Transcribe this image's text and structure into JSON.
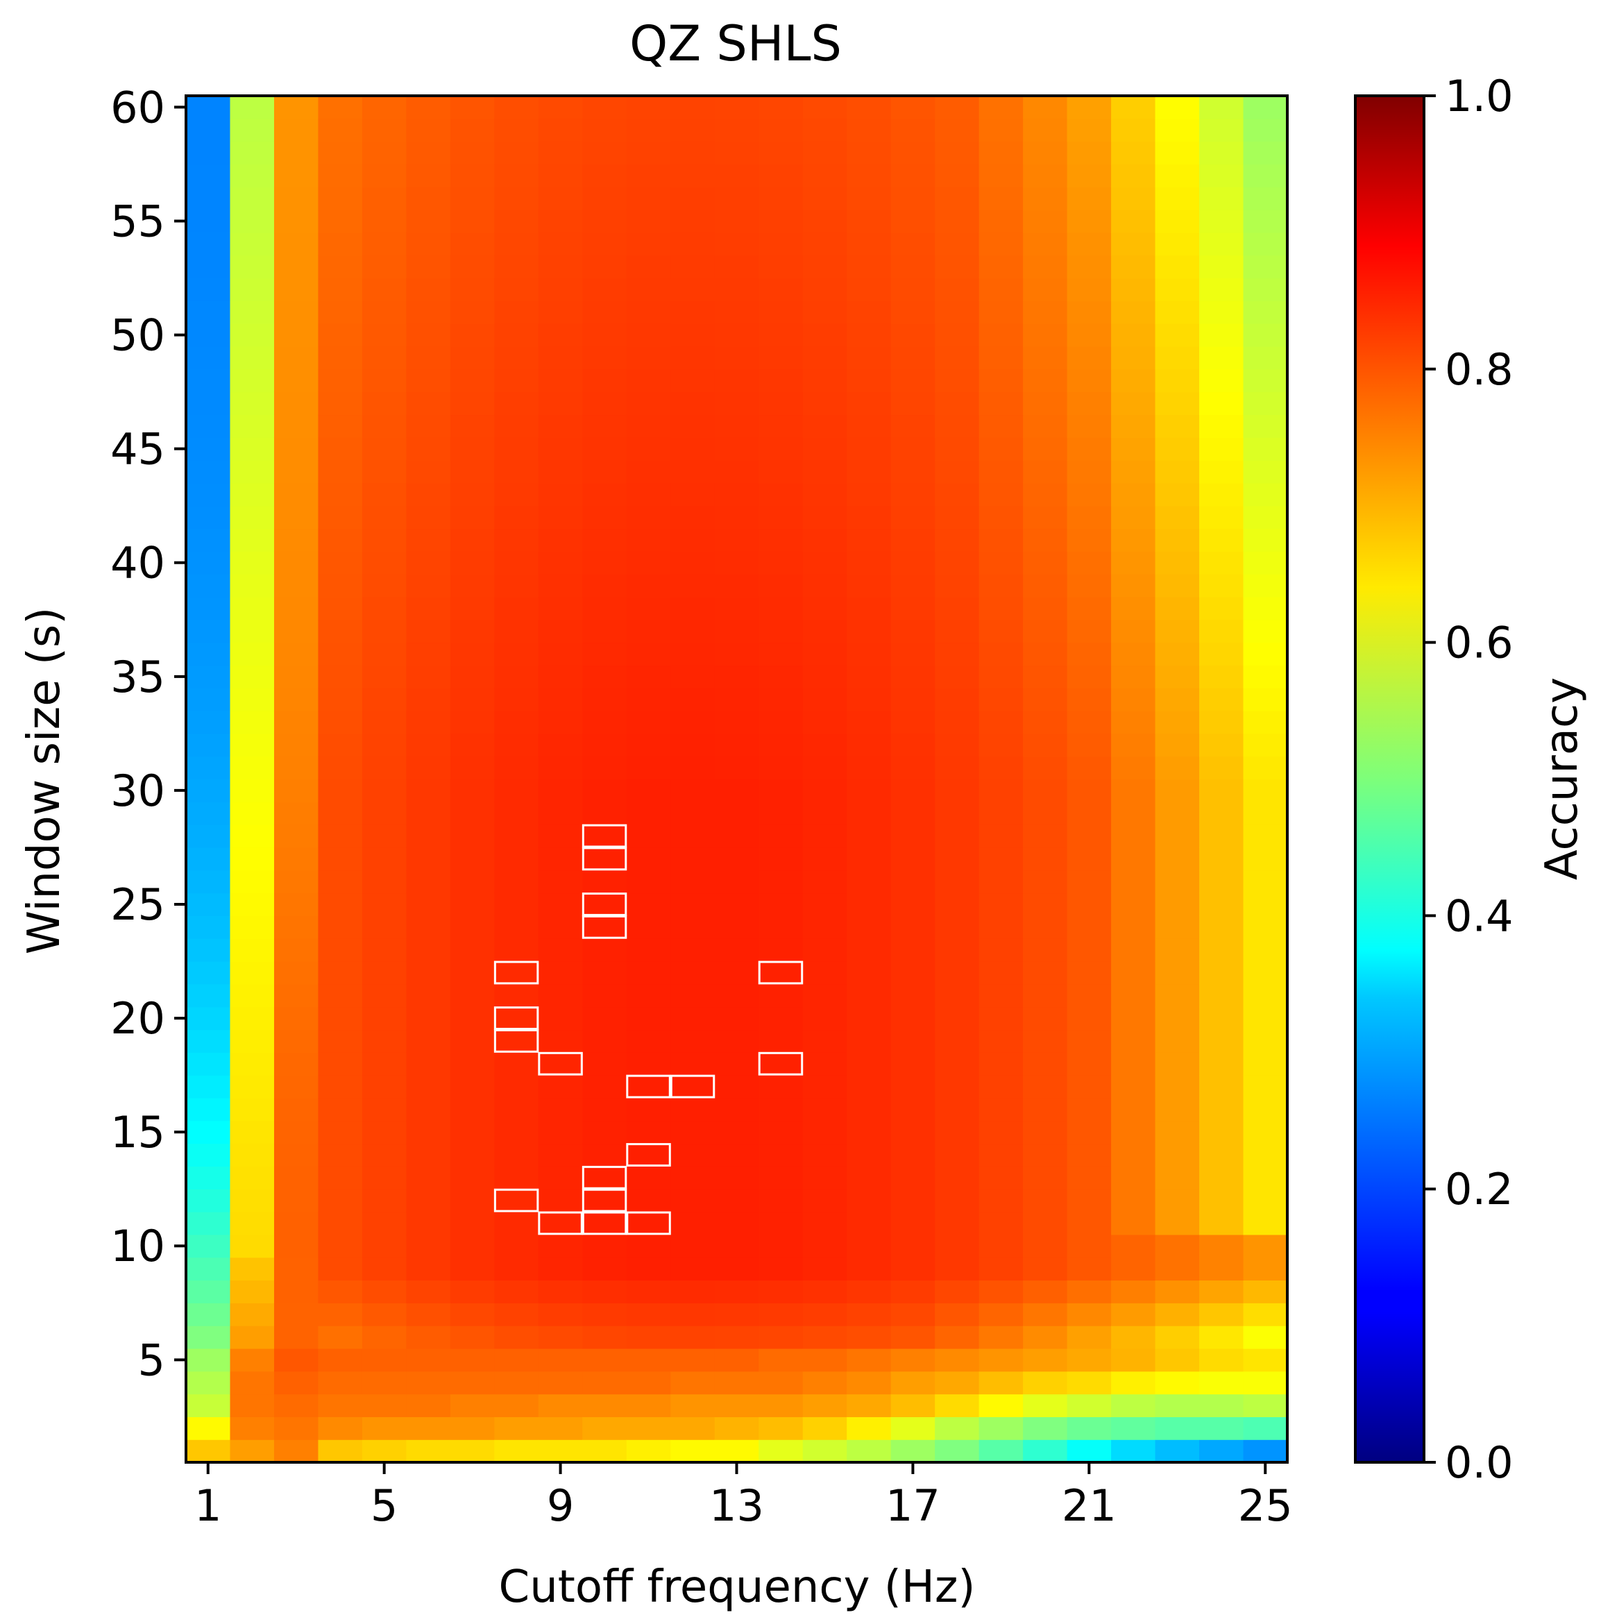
{
  "chart_data": {
    "type": "heatmap",
    "title": "QZ SHLS",
    "xlabel": "Cutoff frequency (Hz)",
    "ylabel": "Window size (s)",
    "colorbar_label": "Accuracy",
    "colormap": "jet",
    "vmin": 0.0,
    "vmax": 1.0,
    "xlim": [
      1,
      25
    ],
    "ylim": [
      1,
      60
    ],
    "x_values": [
      1,
      2,
      3,
      4,
      5,
      6,
      7,
      8,
      9,
      10,
      11,
      12,
      13,
      14,
      15,
      16,
      17,
      18,
      19,
      20,
      21,
      22,
      23,
      24,
      25
    ],
    "y_values": [
      1,
      2,
      3,
      4,
      5,
      6,
      7,
      8,
      9,
      10,
      11,
      12,
      13,
      14,
      15,
      16,
      17,
      18,
      19,
      20,
      21,
      22,
      23,
      24,
      25,
      26,
      27,
      28,
      29,
      30,
      31,
      32,
      33,
      34,
      35,
      36,
      37,
      38,
      39,
      40,
      41,
      42,
      43,
      44,
      45,
      46,
      47,
      48,
      49,
      50,
      51,
      52,
      53,
      54,
      55,
      56,
      57,
      58,
      59,
      60
    ],
    "xticks": [
      {
        "value": 1,
        "label": "1"
      },
      {
        "value": 5,
        "label": "5"
      },
      {
        "value": 9,
        "label": "9"
      },
      {
        "value": 13,
        "label": "13"
      },
      {
        "value": 17,
        "label": "17"
      },
      {
        "value": 21,
        "label": "21"
      },
      {
        "value": 25,
        "label": "25"
      }
    ],
    "yticks": [
      {
        "value": 5,
        "label": "5"
      },
      {
        "value": 10,
        "label": "10"
      },
      {
        "value": 15,
        "label": "15"
      },
      {
        "value": 20,
        "label": "20"
      },
      {
        "value": 25,
        "label": "25"
      },
      {
        "value": 30,
        "label": "30"
      },
      {
        "value": 35,
        "label": "35"
      },
      {
        "value": 40,
        "label": "40"
      },
      {
        "value": 45,
        "label": "45"
      },
      {
        "value": 50,
        "label": "50"
      },
      {
        "value": 55,
        "label": "55"
      },
      {
        "value": 60,
        "label": "60"
      }
    ],
    "colorbar_ticks": [
      {
        "value": 0.0,
        "label": "0.0"
      },
      {
        "value": 0.2,
        "label": "0.2"
      },
      {
        "value": 0.4,
        "label": "0.4"
      },
      {
        "value": 0.6,
        "label": "0.6"
      },
      {
        "value": 0.8,
        "label": "0.8"
      },
      {
        "value": 1.0,
        "label": "1.0"
      }
    ],
    "special_rows": {
      "1": [
        0.68,
        0.72,
        0.75,
        0.68,
        0.67,
        0.66,
        0.66,
        0.65,
        0.65,
        0.65,
        0.64,
        0.63,
        0.63,
        0.6,
        0.58,
        0.56,
        0.53,
        0.5,
        0.46,
        0.42,
        0.38,
        0.34,
        0.31,
        0.29,
        0.27
      ],
      "2": [
        0.63,
        0.75,
        0.76,
        0.74,
        0.73,
        0.73,
        0.73,
        0.72,
        0.72,
        0.71,
        0.71,
        0.71,
        0.7,
        0.69,
        0.67,
        0.64,
        0.6,
        0.56,
        0.53,
        0.5,
        0.48,
        0.47,
        0.46,
        0.46,
        0.45
      ],
      "3": [
        0.57,
        0.76,
        0.77,
        0.76,
        0.76,
        0.76,
        0.75,
        0.75,
        0.74,
        0.74,
        0.74,
        0.73,
        0.73,
        0.73,
        0.72,
        0.71,
        0.69,
        0.66,
        0.63,
        0.6,
        0.58,
        0.56,
        0.55,
        0.55,
        0.56
      ],
      "4": [
        0.55,
        0.76,
        0.78,
        0.77,
        0.77,
        0.77,
        0.77,
        0.77,
        0.77,
        0.77,
        0.77,
        0.76,
        0.76,
        0.76,
        0.75,
        0.74,
        0.72,
        0.71,
        0.69,
        0.67,
        0.66,
        0.64,
        0.63,
        0.62,
        0.62
      ],
      "5": [
        0.53,
        0.75,
        0.79,
        0.78,
        0.78,
        0.78,
        0.78,
        0.78,
        0.78,
        0.78,
        0.78,
        0.78,
        0.78,
        0.77,
        0.77,
        0.76,
        0.75,
        0.74,
        0.73,
        0.72,
        0.71,
        0.7,
        0.68,
        0.66,
        0.65
      ]
    },
    "highlight_cells": [
      {
        "x": 10,
        "y": 28
      },
      {
        "x": 10,
        "y": 27
      },
      {
        "x": 10,
        "y": 25
      },
      {
        "x": 10,
        "y": 24
      },
      {
        "x": 8,
        "y": 22
      },
      {
        "x": 14,
        "y": 22
      },
      {
        "x": 8,
        "y": 20
      },
      {
        "x": 8,
        "y": 19
      },
      {
        "x": 9,
        "y": 18
      },
      {
        "x": 14,
        "y": 18
      },
      {
        "x": 11,
        "y": 17
      },
      {
        "x": 12,
        "y": 17
      },
      {
        "x": 11,
        "y": 14
      },
      {
        "x": 10,
        "y": 13
      },
      {
        "x": 8,
        "y": 12
      },
      {
        "x": 10,
        "y": 12
      },
      {
        "x": 9,
        "y": 11
      },
      {
        "x": 10,
        "y": 11
      },
      {
        "x": 11,
        "y": 11
      }
    ],
    "grid": false,
    "legend": "colorbar-right"
  }
}
